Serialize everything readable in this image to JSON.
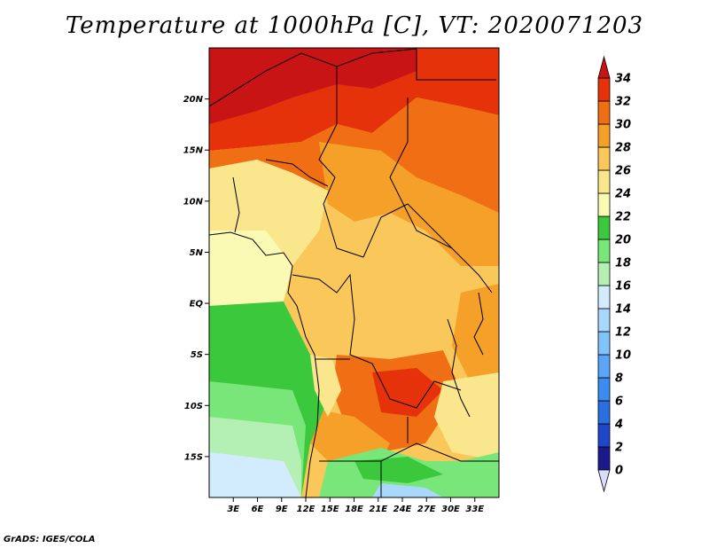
{
  "title": "Temperature at 1000hPa [C], VT: 2020071203",
  "credit": "GrADS: IGES/COLA",
  "map": {
    "lon_range": [
      0,
      36
    ],
    "lat_range": [
      -19,
      25
    ],
    "x_ticks": [
      "3E",
      "6E",
      "9E",
      "12E",
      "15E",
      "18E",
      "21E",
      "24E",
      "27E",
      "30E",
      "33E"
    ],
    "x_tick_values": [
      3,
      6,
      9,
      12,
      15,
      18,
      21,
      24,
      27,
      30,
      33
    ],
    "y_ticks": [
      "20N",
      "15N",
      "10N",
      "5N",
      "EQ",
      "5S",
      "10S",
      "15S"
    ],
    "y_tick_values": [
      20,
      15,
      10,
      5,
      0,
      -5,
      -10,
      -15
    ]
  },
  "colorbar": {
    "labels": [
      "0",
      "2",
      "4",
      "6",
      "8",
      "10",
      "12",
      "14",
      "16",
      "18",
      "20",
      "22",
      "24",
      "26",
      "28",
      "30",
      "32",
      "34"
    ],
    "colors": [
      "#1a1a8c",
      "#1f45c8",
      "#2a6ee0",
      "#3c8cf0",
      "#5aa5f5",
      "#82c3fa",
      "#aad8fc",
      "#d2ecfd",
      "#b4f0b4",
      "#78e678",
      "#3cc83c",
      "#fafab4",
      "#fae68c",
      "#fac85a",
      "#f5a028",
      "#f06e14",
      "#e6320a",
      "#c81414"
    ],
    "under_color": "#dcdcff",
    "over_color": "#c81414"
  }
}
